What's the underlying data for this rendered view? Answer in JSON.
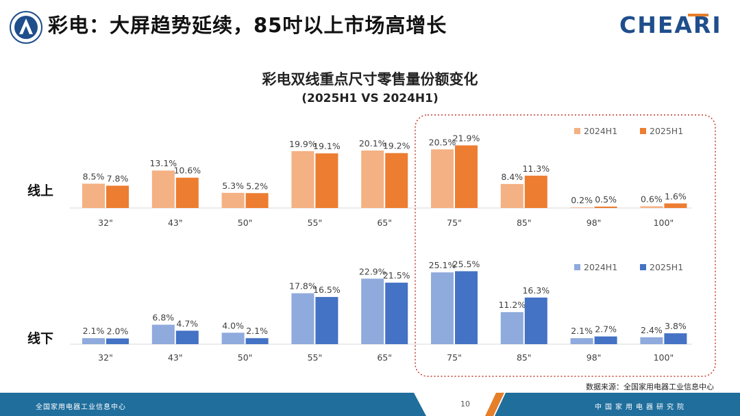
{
  "slide": {
    "title": "彩电：大屏趋势延续，85吋以上市场高增长",
    "brand": "CHEARI",
    "source_note": "数据来源：全国家用电器工业信息中心",
    "page_number": "10",
    "footer_left": "全国家用电器工业信息中心",
    "footer_right": "中国家用电器研究院"
  },
  "colors": {
    "online_2024": "#F4B183",
    "online_2025": "#ED7D31",
    "offline_2024": "#8FAADC",
    "offline_2025": "#4472C4",
    "highlight_border": "#C0392B",
    "footer_blue": "#1F6E9C",
    "footer_orange": "#E57F2A"
  },
  "chart_data": {
    "type": "bar",
    "title": "彩电双线重点尺寸零售量份额变化",
    "subtitle": "(2025H1 VS 2024H1)",
    "categories": [
      "32\"",
      "43\"",
      "50\"",
      "55\"",
      "65\"",
      "75\"",
      "85\"",
      "98\"",
      "100\""
    ],
    "legend_position": "top-right",
    "grid": false,
    "highlighted_categories": [
      "75\"",
      "85\"",
      "98\"",
      "100\""
    ],
    "panels": [
      {
        "row_label": "线上",
        "ylim": [
          0,
          25
        ],
        "series": [
          {
            "name": "2024H1",
            "values": [
              8.5,
              13.1,
              5.3,
              19.9,
              20.1,
              20.5,
              8.4,
              0.2,
              0.6
            ],
            "labels": [
              "8.5%",
              "13.1%",
              "5.3%",
              "19.9%",
              "20.1%",
              "20.5%",
              "8.4%",
              "0.2%",
              "0.6%"
            ]
          },
          {
            "name": "2025H1",
            "values": [
              7.8,
              10.6,
              5.2,
              19.1,
              19.2,
              21.9,
              11.3,
              0.5,
              1.6
            ],
            "labels": [
              "7.8%",
              "10.6%",
              "5.2%",
              "19.1%",
              "19.2%",
              "21.9%",
              "11.3%",
              "0.5%",
              "1.6%"
            ]
          }
        ]
      },
      {
        "row_label": "线下",
        "ylim": [
          0,
          25
        ],
        "series": [
          {
            "name": "2024H1",
            "values": [
              2.1,
              6.8,
              4.0,
              17.8,
              22.9,
              25.1,
              11.2,
              2.1,
              2.4
            ],
            "labels": [
              "2.1%",
              "6.8%",
              "4.0%",
              "17.8%",
              "22.9%",
              "25.1%",
              "11.2%",
              "2.1%",
              "2.4%"
            ]
          },
          {
            "name": "2025H1",
            "values": [
              2.0,
              4.7,
              2.1,
              16.5,
              21.5,
              25.5,
              16.3,
              2.7,
              3.8
            ],
            "labels": [
              "2.0%",
              "4.7%",
              "2.1%",
              "16.5%",
              "21.5%",
              "25.5%",
              "16.3%",
              "2.7%",
              "3.8%"
            ]
          }
        ]
      }
    ]
  }
}
